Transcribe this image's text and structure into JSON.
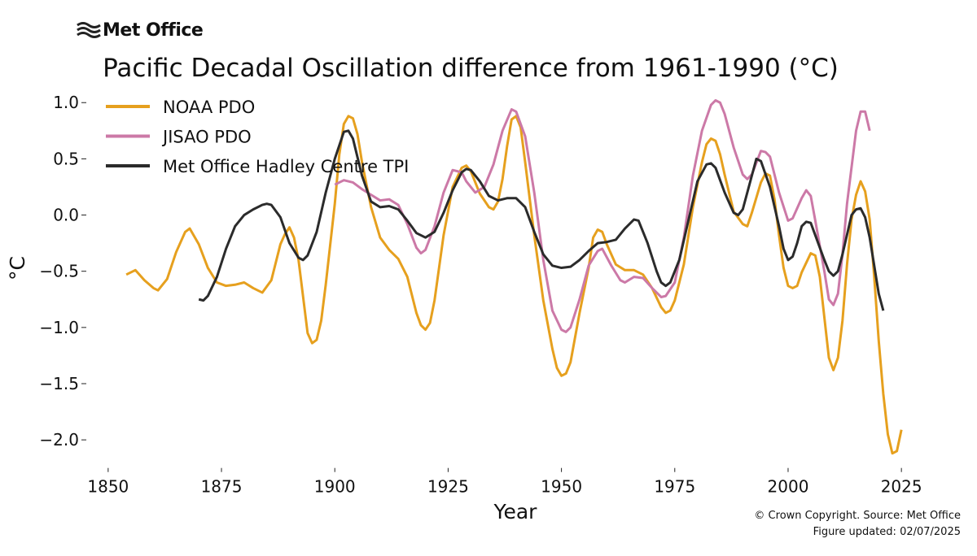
{
  "logo": "Met Office",
  "credits": [
    "© Crown Copyright. Source: Met Office",
    "Figure updated: 02/07/2025"
  ],
  "chart_data": {
    "type": "line",
    "title": "Pacific Decadal Oscillation difference from 1961-1990 (°C)",
    "xlabel": "Year",
    "ylabel": "°C",
    "xlim": [
      1845,
      2030
    ],
    "ylim": [
      -2.25,
      1.15
    ],
    "xticks": [
      1850,
      1875,
      1900,
      1925,
      1950,
      1975,
      2000,
      2025
    ],
    "yticks": [
      {
        "value": 1,
        "label": "1.0"
      },
      {
        "value": 0.5,
        "label": "0.5"
      },
      {
        "value": 0,
        "label": "0.0"
      },
      {
        "value": -0.5,
        "label": "−0.5"
      },
      {
        "value": -1,
        "label": "−1.0"
      },
      {
        "value": -1.5,
        "label": "−1.5"
      },
      {
        "value": -2,
        "label": "−2.0"
      }
    ],
    "grid": false,
    "legend": "upper left",
    "series": [
      {
        "name": "NOAA PDO",
        "color": "#e6a01e",
        "x": [
          1854,
          1856,
          1858,
          1860,
          1861,
          1863,
          1865,
          1867,
          1868,
          1870,
          1872,
          1874,
          1876,
          1878,
          1880,
          1882,
          1884,
          1886,
          1888,
          1889,
          1890,
          1891,
          1892,
          1894,
          1895,
          1896,
          1897,
          1898,
          1900,
          1901,
          1902,
          1903,
          1904,
          1905,
          1906,
          1908,
          1910,
          1912,
          1914,
          1916,
          1918,
          1919,
          1920,
          1921,
          1922,
          1924,
          1926,
          1928,
          1929,
          1930,
          1932,
          1934,
          1935,
          1936,
          1937,
          1938,
          1939,
          1940,
          1941,
          1942,
          1944,
          1946,
          1948,
          1949,
          1950,
          1951,
          1952,
          1954,
          1956,
          1957,
          1958,
          1959,
          1960,
          1962,
          1964,
          1966,
          1968,
          1970,
          1972,
          1973,
          1974,
          1975,
          1977,
          1979,
          1981,
          1982,
          1983,
          1984,
          1985,
          1986,
          1988,
          1990,
          1991,
          1992,
          1994,
          1995,
          1996,
          1997,
          1998,
          1999,
          2000,
          2001,
          2002,
          2003,
          2005,
          2006,
          2007,
          2008,
          2009,
          2010,
          2011,
          2012,
          2013,
          2014,
          2015,
          2016,
          2017,
          2018,
          2019,
          2020,
          2021,
          2022,
          2023,
          2024,
          2025
        ],
        "values": [
          -0.53,
          -0.49,
          -0.58,
          -0.65,
          -0.67,
          -0.57,
          -0.33,
          -0.15,
          -0.12,
          -0.26,
          -0.47,
          -0.6,
          -0.63,
          -0.62,
          -0.6,
          -0.65,
          -0.69,
          -0.58,
          -0.26,
          -0.17,
          -0.11,
          -0.2,
          -0.4,
          -1.05,
          -1.14,
          -1.11,
          -0.94,
          -0.62,
          0.1,
          0.54,
          0.81,
          0.88,
          0.86,
          0.72,
          0.47,
          0.07,
          -0.2,
          -0.31,
          -0.39,
          -0.55,
          -0.87,
          -0.98,
          -1.02,
          -0.96,
          -0.76,
          -0.18,
          0.25,
          0.42,
          0.44,
          0.39,
          0.19,
          0.07,
          0.05,
          0.12,
          0.32,
          0.61,
          0.85,
          0.88,
          0.78,
          0.47,
          -0.18,
          -0.76,
          -1.19,
          -1.36,
          -1.43,
          -1.41,
          -1.31,
          -0.87,
          -0.47,
          -0.2,
          -0.13,
          -0.15,
          -0.26,
          -0.44,
          -0.49,
          -0.49,
          -0.53,
          -0.65,
          -0.82,
          -0.87,
          -0.85,
          -0.76,
          -0.44,
          0.07,
          0.47,
          0.63,
          0.68,
          0.66,
          0.54,
          0.36,
          0.03,
          -0.08,
          -0.1,
          0.02,
          0.29,
          0.37,
          0.35,
          0.14,
          -0.18,
          -0.47,
          -0.63,
          -0.65,
          -0.63,
          -0.51,
          -0.34,
          -0.36,
          -0.55,
          -0.91,
          -1.27,
          -1.38,
          -1.27,
          -0.94,
          -0.44,
          -0.04,
          0.18,
          0.3,
          0.21,
          -0.04,
          -0.55,
          -1.12,
          -1.59,
          -1.95,
          -2.12,
          -2.1,
          -1.91
        ]
      },
      {
        "name": "JISAO PDO",
        "color": "#cc79a7",
        "x": [
          1900,
          1902,
          1904,
          1906,
          1908,
          1910,
          1912,
          1914,
          1916,
          1918,
          1919,
          1920,
          1922,
          1924,
          1926,
          1928,
          1929,
          1931,
          1933,
          1935,
          1937,
          1939,
          1940,
          1942,
          1944,
          1946,
          1948,
          1950,
          1951,
          1952,
          1954,
          1956,
          1958,
          1959,
          1961,
          1963,
          1964,
          1966,
          1968,
          1970,
          1972,
          1973,
          1975,
          1977,
          1979,
          1981,
          1983,
          1984,
          1985,
          1986,
          1988,
          1990,
          1991,
          1992,
          1994,
          1995,
          1996,
          1998,
          2000,
          2001,
          2003,
          2004,
          2005,
          2006,
          2008,
          2009,
          2010,
          2011,
          2012,
          2013,
          2015,
          2016,
          2017,
          2018
        ],
        "values": [
          0.27,
          0.31,
          0.29,
          0.23,
          0.18,
          0.13,
          0.14,
          0.09,
          -0.08,
          -0.29,
          -0.34,
          -0.31,
          -0.1,
          0.2,
          0.4,
          0.38,
          0.3,
          0.2,
          0.25,
          0.45,
          0.75,
          0.94,
          0.92,
          0.7,
          0.2,
          -0.4,
          -0.85,
          -1.02,
          -1.04,
          -1.0,
          -0.75,
          -0.45,
          -0.32,
          -0.3,
          -0.45,
          -0.58,
          -0.6,
          -0.55,
          -0.56,
          -0.65,
          -0.73,
          -0.72,
          -0.6,
          -0.2,
          0.35,
          0.75,
          0.98,
          1.02,
          1.0,
          0.9,
          0.6,
          0.36,
          0.32,
          0.36,
          0.57,
          0.56,
          0.52,
          0.2,
          -0.05,
          -0.03,
          0.15,
          0.22,
          0.17,
          -0.05,
          -0.5,
          -0.75,
          -0.8,
          -0.7,
          -0.35,
          0.1,
          0.75,
          0.92,
          0.92,
          0.75
        ]
      },
      {
        "name": "Met Office Hadley Centre TPI",
        "color": "#2b2b2b",
        "x": [
          1870,
          1871,
          1872,
          1874,
          1876,
          1878,
          1880,
          1882,
          1884,
          1885,
          1886,
          1888,
          1890,
          1892,
          1893,
          1894,
          1896,
          1898,
          1900,
          1902,
          1903,
          1904,
          1906,
          1908,
          1910,
          1912,
          1914,
          1916,
          1918,
          1920,
          1922,
          1924,
          1926,
          1928,
          1929,
          1930,
          1932,
          1934,
          1936,
          1938,
          1940,
          1942,
          1944,
          1946,
          1948,
          1950,
          1952,
          1954,
          1956,
          1958,
          1960,
          1962,
          1964,
          1966,
          1967,
          1969,
          1971,
          1972,
          1973,
          1974,
          1976,
          1978,
          1980,
          1982,
          1983,
          1984,
          1986,
          1988,
          1989,
          1990,
          1992,
          1993,
          1994,
          1996,
          1998,
          1999,
          2000,
          2001,
          2002,
          2003,
          2004,
          2005,
          2006,
          2008,
          2009,
          2010,
          2011,
          2012,
          2014,
          2015,
          2016,
          2017,
          2018,
          2019,
          2020,
          2021
        ],
        "values": [
          -0.75,
          -0.76,
          -0.72,
          -0.55,
          -0.3,
          -0.1,
          0.0,
          0.05,
          0.09,
          0.1,
          0.09,
          -0.02,
          -0.25,
          -0.38,
          -0.4,
          -0.36,
          -0.15,
          0.2,
          0.5,
          0.74,
          0.75,
          0.68,
          0.35,
          0.12,
          0.07,
          0.08,
          0.05,
          -0.05,
          -0.16,
          -0.2,
          -0.15,
          0.02,
          0.22,
          0.38,
          0.41,
          0.4,
          0.3,
          0.17,
          0.13,
          0.15,
          0.15,
          0.07,
          -0.15,
          -0.35,
          -0.45,
          -0.47,
          -0.46,
          -0.4,
          -0.32,
          -0.25,
          -0.24,
          -0.22,
          -0.12,
          -0.04,
          -0.05,
          -0.25,
          -0.5,
          -0.6,
          -0.63,
          -0.6,
          -0.4,
          -0.05,
          0.3,
          0.45,
          0.46,
          0.42,
          0.2,
          0.02,
          0.0,
          0.05,
          0.35,
          0.5,
          0.48,
          0.25,
          -0.1,
          -0.3,
          -0.4,
          -0.37,
          -0.25,
          -0.1,
          -0.06,
          -0.07,
          -0.18,
          -0.4,
          -0.5,
          -0.54,
          -0.5,
          -0.35,
          0.0,
          0.05,
          0.06,
          -0.02,
          -0.2,
          -0.45,
          -0.7,
          -0.85
        ]
      }
    ]
  }
}
